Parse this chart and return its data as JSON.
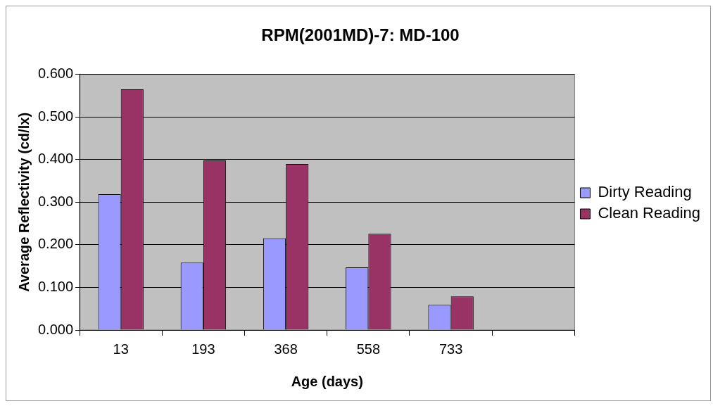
{
  "chart_data": {
    "type": "bar",
    "title": "RPM(2001MD)-7: MD-100",
    "xlabel": "Age (days)",
    "ylabel": "Average Reflectivity (cd/lx)",
    "categories": [
      "13",
      "193",
      "368",
      "558",
      "733",
      null
    ],
    "series": [
      {
        "name": "Dirty Reading",
        "color": "#9999ff",
        "values": [
          0.319,
          0.158,
          0.215,
          0.147,
          0.059,
          null
        ]
      },
      {
        "name": "Clean Reading",
        "color": "#993366",
        "values": [
          0.565,
          0.398,
          0.39,
          0.226,
          0.079,
          null
        ]
      }
    ],
    "ylim": [
      0,
      0.6
    ],
    "yticks": [
      {
        "value": 0,
        "label": "0.000"
      },
      {
        "value": 0.1,
        "label": "0.100"
      },
      {
        "value": 0.2,
        "label": "0.200"
      },
      {
        "value": 0.3,
        "label": "0.300"
      },
      {
        "value": 0.4,
        "label": "0.400"
      },
      {
        "value": 0.5,
        "label": "0.500"
      },
      {
        "value": 0.6,
        "label": "0.600"
      }
    ],
    "grid": "y",
    "legend": "right"
  }
}
